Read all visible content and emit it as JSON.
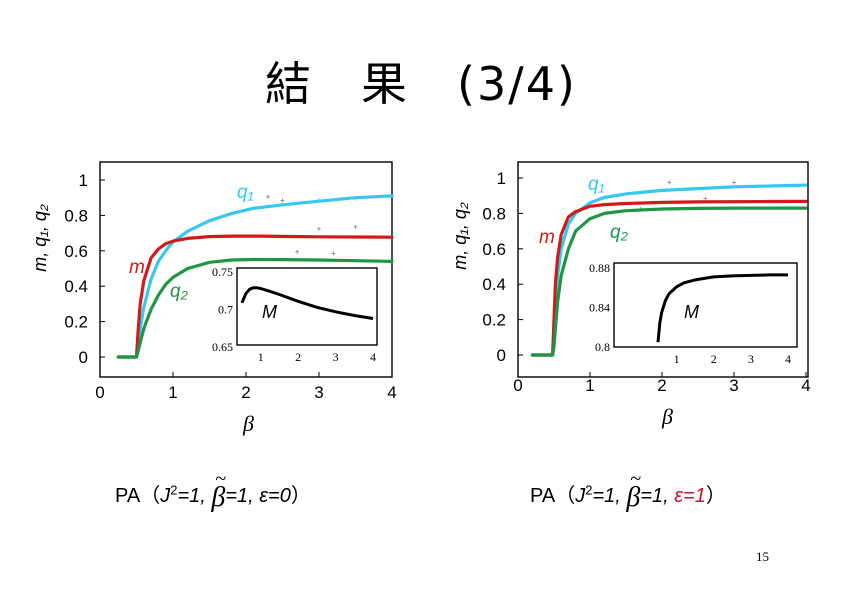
{
  "slide": {
    "title": "結　果　(3/4)",
    "page_number": "15"
  },
  "captions": [
    {
      "pre": "PA（",
      "j": "J",
      "sup": "2",
      "mid": "=1, ",
      "beta": "β",
      "tilde": "~",
      "post": "=1, ",
      "eps": "ε=0",
      "close": "）",
      "eps_color": "#000000"
    },
    {
      "pre": "PA（",
      "j": "J",
      "sup": "2",
      "mid": "=1, ",
      "beta": "β",
      "tilde": "~",
      "post": "=1, ",
      "eps": "ε=1",
      "close": "）",
      "eps_color": "#c8102e"
    }
  ],
  "colors": {
    "q1": "#36c8ee",
    "m": "#d21a1a",
    "q2": "#1e9645",
    "inset": "#000000"
  },
  "chart_data": [
    {
      "type": "line",
      "xlabel": "β",
      "ylabel": "m, q₁, q₂",
      "xlim": [
        0,
        4
      ],
      "ylim": [
        0,
        1
      ],
      "xticks": [
        "0",
        "1",
        "2",
        "3",
        "4"
      ],
      "yticks": [
        "0",
        "0.2",
        "0.4",
        "0.6",
        "0.8",
        "1"
      ],
      "series": [
        {
          "name": "q₁",
          "label_color": "#36c8ee",
          "x": [
            0.25,
            0.5,
            0.52,
            0.55,
            0.6,
            0.7,
            0.8,
            0.9,
            1.0,
            1.2,
            1.5,
            1.8,
            2.1,
            2.5,
            3.0,
            3.5,
            4.0
          ],
          "y": [
            0,
            0,
            0.06,
            0.16,
            0.28,
            0.44,
            0.54,
            0.6,
            0.65,
            0.71,
            0.77,
            0.81,
            0.84,
            0.86,
            0.88,
            0.9,
            0.91
          ]
        },
        {
          "name": "m",
          "label_color": "#d21a1a",
          "x": [
            0.25,
            0.5,
            0.52,
            0.55,
            0.6,
            0.7,
            0.8,
            0.9,
            1.0,
            1.2,
            1.5,
            1.8,
            2.2,
            2.6,
            3.0,
            3.5,
            4.0
          ],
          "y": [
            0,
            0,
            0.14,
            0.3,
            0.43,
            0.56,
            0.61,
            0.64,
            0.655,
            0.67,
            0.68,
            0.683,
            0.683,
            0.681,
            0.679,
            0.678,
            0.677
          ]
        },
        {
          "name": "q₂",
          "label_color": "#1e9645",
          "x": [
            0.25,
            0.5,
            0.52,
            0.55,
            0.6,
            0.7,
            0.8,
            0.9,
            1.0,
            1.2,
            1.5,
            1.8,
            2.1,
            2.5,
            3.0,
            3.5,
            4.0
          ],
          "y": [
            0,
            0,
            0.03,
            0.08,
            0.16,
            0.27,
            0.35,
            0.41,
            0.45,
            0.5,
            0.535,
            0.548,
            0.551,
            0.55,
            0.548,
            0.544,
            0.54
          ]
        }
      ],
      "inset": {
        "label": "M",
        "xlim": [
          0.5,
          4
        ],
        "ylim": [
          0.65,
          0.75
        ],
        "xticks": [
          "1",
          "2",
          "3",
          "4"
        ],
        "yticks": [
          "0.65",
          "0.7",
          "0.75"
        ],
        "x": [
          0.5,
          0.6,
          0.7,
          0.8,
          0.9,
          1.0,
          1.2,
          1.5,
          2.0,
          2.5,
          3.0,
          3.5,
          4.0
        ],
        "y": [
          0.709,
          0.721,
          0.727,
          0.729,
          0.729,
          0.728,
          0.725,
          0.72,
          0.711,
          0.703,
          0.697,
          0.692,
          0.688
        ]
      }
    },
    {
      "type": "line",
      "xlabel": "β",
      "ylabel": "m, q₁, q₂",
      "xlim": [
        0,
        4
      ],
      "ylim": [
        0,
        1
      ],
      "xticks": [
        "0",
        "1",
        "2",
        "3",
        "4"
      ],
      "yticks": [
        "0",
        "0.2",
        "0.4",
        "0.6",
        "0.8",
        "1"
      ],
      "series": [
        {
          "name": "q₁",
          "label_color": "#36c8ee",
          "x": [
            0.2,
            0.48,
            0.5,
            0.52,
            0.55,
            0.6,
            0.7,
            0.8,
            1.0,
            1.2,
            1.5,
            2.0,
            2.5,
            3.0,
            3.5,
            4.0
          ],
          "y": [
            0,
            0,
            0.12,
            0.3,
            0.45,
            0.6,
            0.74,
            0.8,
            0.86,
            0.89,
            0.91,
            0.93,
            0.94,
            0.95,
            0.955,
            0.96
          ]
        },
        {
          "name": "m",
          "label_color": "#d21a1a",
          "x": [
            0.2,
            0.48,
            0.5,
            0.52,
            0.55,
            0.6,
            0.7,
            0.8,
            1.0,
            1.2,
            1.5,
            2.0,
            2.5,
            3.0,
            3.5,
            4.0
          ],
          "y": [
            0,
            0,
            0.2,
            0.4,
            0.55,
            0.68,
            0.78,
            0.81,
            0.84,
            0.85,
            0.856,
            0.862,
            0.865,
            0.866,
            0.867,
            0.868
          ]
        },
        {
          "name": "q₂",
          "label_color": "#1e9645",
          "x": [
            0.2,
            0.48,
            0.5,
            0.52,
            0.55,
            0.6,
            0.7,
            0.8,
            1.0,
            1.2,
            1.5,
            2.0,
            2.5,
            3.0,
            3.5,
            4.0
          ],
          "y": [
            0,
            0,
            0.05,
            0.15,
            0.3,
            0.45,
            0.6,
            0.7,
            0.77,
            0.8,
            0.815,
            0.825,
            0.828,
            0.83,
            0.83,
            0.83
          ]
        }
      ],
      "inset": {
        "label": "M",
        "xlim": [
          0.5,
          4
        ],
        "ylim": [
          0.8,
          0.88
        ],
        "xticks": [
          "1",
          "2",
          "3",
          "4"
        ],
        "yticks": [
          "0.8",
          "0.84",
          "0.88"
        ],
        "x": [
          0.5,
          0.55,
          0.6,
          0.7,
          0.8,
          1.0,
          1.2,
          1.5,
          2.0,
          2.5,
          3.0,
          3.5,
          4.0
        ],
        "y": [
          0.805,
          0.825,
          0.835,
          0.847,
          0.854,
          0.861,
          0.865,
          0.868,
          0.871,
          0.872,
          0.8725,
          0.873,
          0.873
        ]
      }
    }
  ]
}
